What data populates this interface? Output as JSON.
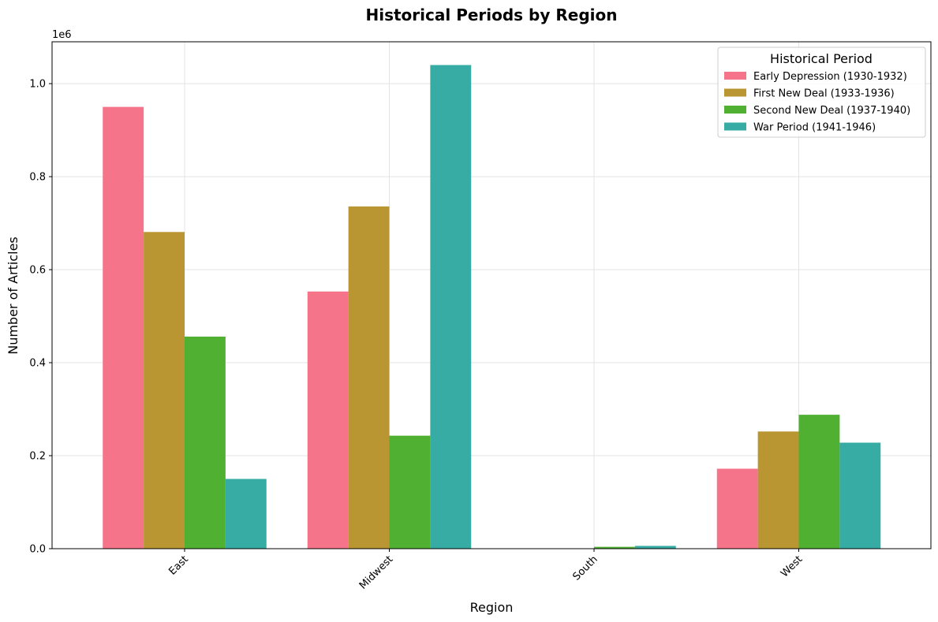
{
  "chart_data": {
    "type": "bar",
    "title": "Historical Periods by Region",
    "xlabel": "Region",
    "ylabel": "Number of Articles",
    "y_offset_label": "1e6",
    "categories": [
      "East",
      "Midwest",
      "South",
      "West"
    ],
    "series": [
      {
        "name": "Early Depression (1930-1932)",
        "color": "#f57489",
        "values": [
          950000,
          553000,
          0,
          172000
        ]
      },
      {
        "name": "First New Deal (1933-1936)",
        "color": "#b99632",
        "values": [
          681000,
          736000,
          0,
          252000
        ]
      },
      {
        "name": "Second New Deal (1937-1940)",
        "color": "#4fb032",
        "values": [
          456000,
          243000,
          4000,
          288000
        ]
      },
      {
        "name": "War Period (1941-1946)",
        "color": "#36aca5",
        "values": [
          150000,
          1040000,
          6000,
          228000
        ]
      }
    ],
    "ylim": [
      0,
      1090000
    ],
    "yticks": [
      0,
      200000,
      400000,
      600000,
      800000,
      1000000
    ],
    "ytick_labels": [
      "0.0",
      "0.2",
      "0.4",
      "0.6",
      "0.8",
      "1.0"
    ],
    "grid": true,
    "legend": {
      "title": "Historical Period",
      "placement": "top-right"
    }
  }
}
